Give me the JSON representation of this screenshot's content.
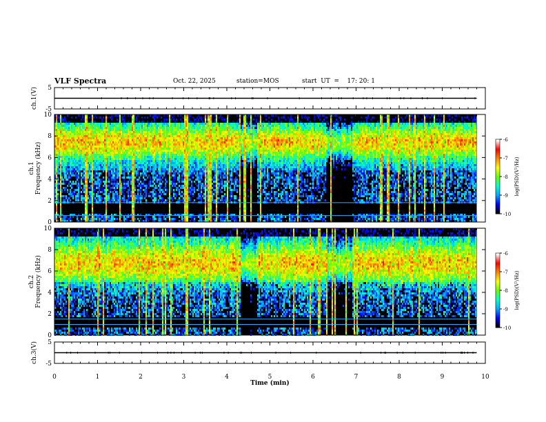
{
  "header": {
    "title": "VLF Spectra",
    "date": "Oct. 22, 2025",
    "station": "station=MOS",
    "start_ut": "start  UT  =    17: 20: 1"
  },
  "chart_data": [
    {
      "type": "line",
      "panel": "ch1-waveform",
      "ylabel": "ch.1(V)",
      "ylim": [
        -5,
        5
      ],
      "yticks": [
        -5,
        5
      ],
      "x_range_min": [
        0,
        10
      ],
      "trace_level": 0,
      "trace_end_min": 9.8
    },
    {
      "type": "heatmap",
      "panel": "ch1-spectrogram",
      "ylabel": "ch.1 Frequency (kHz)",
      "ylim": [
        0,
        10
      ],
      "yticks": [
        0,
        2,
        4,
        6,
        8,
        10
      ],
      "x_range_min": [
        0,
        10
      ],
      "data_end_min": 9.8,
      "noise_lines_khz": [
        0.6,
        1.8
      ],
      "colorbar": {
        "label": "log(PSD)(V²/Hz)",
        "range": [
          -10,
          -6
        ],
        "ticks": [
          -10,
          -9,
          -8,
          -7,
          -6
        ]
      }
    },
    {
      "type": "heatmap",
      "panel": "ch2-spectrogram",
      "ylabel": "ch.2 Frequency (kHz)",
      "ylim": [
        0,
        10
      ],
      "yticks": [
        0,
        2,
        4,
        6,
        8,
        10
      ],
      "x_range_min": [
        0,
        10
      ],
      "data_end_min": 9.8,
      "noise_lines_khz": [
        1.0,
        1.5
      ],
      "colorbar": {
        "label": "log(PSD)(V²/Hz)",
        "range": [
          -10,
          -6
        ],
        "ticks": [
          -10,
          -9,
          -8,
          -7,
          -6
        ]
      }
    },
    {
      "type": "line",
      "panel": "ch3-waveform",
      "ylabel": "ch.3(V)",
      "ylim": [
        -5,
        5
      ],
      "yticks": [
        -5,
        5
      ],
      "x_range_min": [
        0,
        10
      ],
      "trace_level": 0,
      "trace_end_min": 9.8
    }
  ],
  "xaxis": {
    "label": "Time (min)",
    "ticks": [
      0,
      1,
      2,
      3,
      4,
      5,
      6,
      7,
      8,
      9,
      10
    ]
  },
  "colors": {
    "colormap": [
      "#000000",
      "#0000ff",
      "#00aaff",
      "#00ffcc",
      "#66ff00",
      "#ffff00",
      "#ff8800",
      "#ff0000",
      "#ffffff"
    ]
  }
}
